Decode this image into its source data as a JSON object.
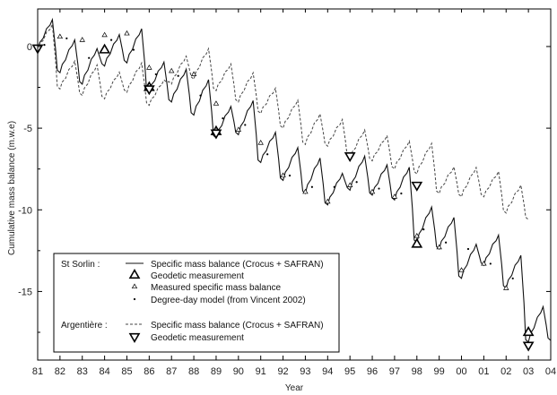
{
  "chart_data": {
    "type": "line",
    "title": "",
    "xlabel": "Year",
    "ylabel": "Cumulative mass balance (m.w.e)",
    "xlim": [
      1981,
      2004
    ],
    "ylim": [
      -19.2,
      2.3
    ],
    "x_ticks": [
      1981,
      1982,
      1983,
      1984,
      1985,
      1986,
      1987,
      1988,
      1989,
      1990,
      1991,
      1992,
      1993,
      1994,
      1995,
      1996,
      1997,
      1998,
      1999,
      2000,
      2001,
      2002,
      2003,
      2004
    ],
    "x_tick_labels": [
      "81",
      "82",
      "83",
      "84",
      "85",
      "86",
      "87",
      "88",
      "89",
      "90",
      "91",
      "92",
      "93",
      "94",
      "95",
      "96",
      "97",
      "98",
      "99",
      "00",
      "01",
      "02",
      "03",
      "04"
    ],
    "y_ticks": [
      0,
      -5,
      -10,
      -15
    ],
    "y_tick_labels": [
      "0",
      "-5",
      "-10",
      "-15"
    ],
    "grid": false,
    "legend_position": "bottom-left",
    "legend_groups": [
      {
        "name": "St Sorlin :",
        "entries": [
          "Specific mass balance (Crocus + SAFRAN)",
          "Geodetic measurement",
          "Measured specific mass balance",
          "Degree-day model (from Vincent 2002)"
        ]
      },
      {
        "name": "Argentière :",
        "entries": [
          "Specific mass balance (Crocus + SAFRAN)",
          "Geodetic measurement"
        ]
      }
    ],
    "series": [
      {
        "name": "St Sorlin Specific mass balance (Crocus + SAFRAN)",
        "style": "solid",
        "end_of_year_balance": [
          [
            1981,
            -0.2
          ],
          [
            1982,
            -1.6
          ],
          [
            1983,
            -2.3
          ],
          [
            1984,
            -1.2
          ],
          [
            1985,
            -1.0
          ],
          [
            1986,
            -2.8
          ],
          [
            1987,
            -3.4
          ],
          [
            1988,
            -4.2
          ],
          [
            1989,
            -5.6
          ],
          [
            1990,
            -5.4
          ],
          [
            1991,
            -7.1
          ],
          [
            1992,
            -8.2
          ],
          [
            1993,
            -9.0
          ],
          [
            1994,
            -9.7
          ],
          [
            1995,
            -8.8
          ],
          [
            1996,
            -9.1
          ],
          [
            1997,
            -9.4
          ],
          [
            1998,
            -12.0
          ],
          [
            1999,
            -12.4
          ],
          [
            2000,
            -14.2
          ],
          [
            2001,
            -13.4
          ],
          [
            2002,
            -14.8
          ],
          [
            2003,
            -18.1
          ],
          [
            2004,
            -18.0
          ]
        ]
      },
      {
        "name": "St Sorlin Measured specific mass balance",
        "style": "small-triangle",
        "points": [
          [
            1982,
            0.6
          ],
          [
            1983,
            0.4
          ],
          [
            1984,
            0.7
          ],
          [
            1985,
            0.8
          ],
          [
            1986,
            -1.3
          ],
          [
            1987,
            -1.5
          ],
          [
            1988,
            -1.7
          ],
          [
            1989,
            -3.5
          ],
          [
            1990,
            -5.1
          ],
          [
            1991,
            -5.9
          ],
          [
            1992,
            -7.9
          ],
          [
            1993,
            -8.9
          ],
          [
            1994,
            -9.5
          ],
          [
            1995,
            -8.5
          ],
          [
            1996,
            -8.9
          ],
          [
            1997,
            -9.2
          ],
          [
            1998,
            -11.6
          ],
          [
            1999,
            -12.3
          ],
          [
            2000,
            -13.7
          ],
          [
            2001,
            -13.3
          ],
          [
            2002,
            -14.8
          ],
          [
            2003,
            -17.6
          ]
        ]
      },
      {
        "name": "St Sorlin Degree-day model (from Vincent 2002)",
        "style": "dot",
        "points": [
          [
            1981.3,
            0.1
          ],
          [
            1982.3,
            0.5
          ],
          [
            1983.3,
            -0.7
          ],
          [
            1984.3,
            0.4
          ],
          [
            1985.3,
            -0.2
          ],
          [
            1986.3,
            -1.7
          ],
          [
            1987.3,
            -1.8
          ],
          [
            1988.3,
            -3.0
          ],
          [
            1989.3,
            -4.4
          ],
          [
            1990.3,
            -4.8
          ],
          [
            1991.3,
            -6.6
          ],
          [
            1992.3,
            -7.9
          ],
          [
            1993.3,
            -8.6
          ],
          [
            1994.3,
            -8.6
          ],
          [
            1995.3,
            -8.3
          ],
          [
            1996.3,
            -8.7
          ],
          [
            1997.3,
            -9.0
          ],
          [
            1998.3,
            -11.2
          ],
          [
            1999.3,
            -12.0
          ],
          [
            2000.3,
            -12.4
          ],
          [
            2001.3,
            -13.3
          ],
          [
            2002.3,
            -14.2
          ]
        ]
      },
      {
        "name": "St Sorlin Geodetic measurement",
        "style": "large-triangle-up",
        "points": [
          [
            1984,
            -0.2
          ],
          [
            1986,
            -2.5
          ],
          [
            1989,
            -5.2
          ],
          [
            1998,
            -12.1
          ],
          [
            2003,
            -17.5
          ]
        ]
      },
      {
        "name": "Argentière Specific mass balance (Crocus + SAFRAN)",
        "style": "dashed",
        "end_of_year_balance": [
          [
            1981,
            -0.2
          ],
          [
            1982,
            -2.6
          ],
          [
            1983,
            -3.0
          ],
          [
            1984,
            -3.2
          ],
          [
            1985,
            -2.8
          ],
          [
            1986,
            -3.6
          ],
          [
            1987,
            -2.3
          ],
          [
            1988,
            -2.0
          ],
          [
            1989,
            -2.7
          ],
          [
            1990,
            -3.4
          ],
          [
            1991,
            -4.1
          ],
          [
            1992,
            -5.0
          ],
          [
            1993,
            -6.0
          ],
          [
            1994,
            -6.1
          ],
          [
            1995,
            -6.9
          ],
          [
            1996,
            -7.0
          ],
          [
            1997,
            -7.5
          ],
          [
            1998,
            -7.8
          ],
          [
            1999,
            -9.0
          ],
          [
            2000,
            -9.2
          ],
          [
            2001,
            -9.2
          ],
          [
            2002,
            -10.2
          ],
          [
            2003,
            -10.6
          ]
        ]
      },
      {
        "name": "Argentière Geodetic measurement",
        "style": "large-triangle-down",
        "points": [
          [
            1981,
            -0.1
          ],
          [
            1986,
            -2.6
          ],
          [
            1989,
            -5.3
          ],
          [
            1995,
            -6.7
          ],
          [
            1998,
            -8.5
          ],
          [
            2003,
            -18.3
          ]
        ]
      }
    ]
  }
}
